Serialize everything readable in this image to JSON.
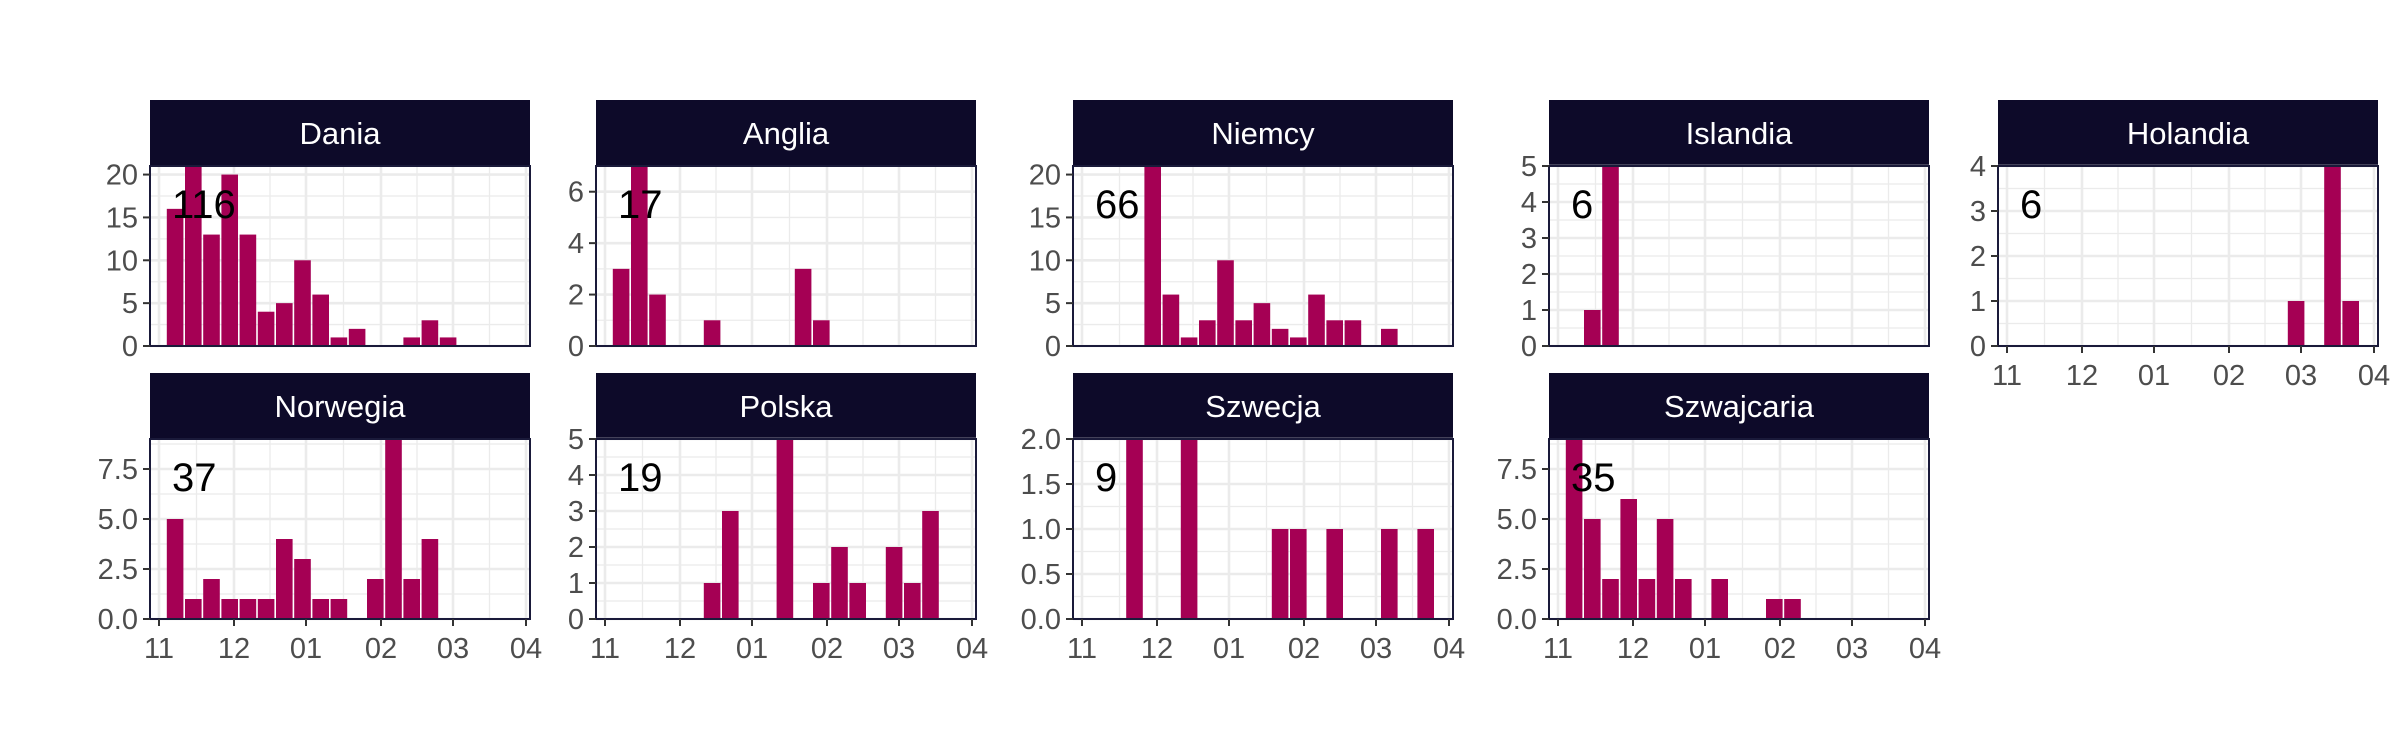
{
  "colors": {
    "bar": "#a50054",
    "strip_bg": "#0d0a29",
    "strip_text": "#ffffff",
    "grid": "#ebebeb",
    "panel_border": "#1a1a3a",
    "tick_text": "#4d4d4d",
    "total_text": "#000000"
  },
  "chart_data": {
    "type": "bar",
    "layout": "faceted small multiples (5 columns x 2 rows), free y scales, shared x axis",
    "grid": true,
    "x_tick_labels": [
      "11",
      "12",
      "01",
      "02",
      "03",
      "04"
    ],
    "panels": [
      {
        "name": "Dania",
        "total": "116",
        "y_ticks": [
          0,
          5,
          10,
          15,
          20
        ],
        "y_tick_labels": [
          "0",
          "5",
          "10",
          "15",
          "20"
        ],
        "ylim": [
          0,
          21
        ],
        "bars": [
          [
            0,
            16
          ],
          [
            1,
            21
          ],
          [
            2,
            13
          ],
          [
            3,
            20
          ],
          [
            4,
            13
          ],
          [
            5,
            4
          ],
          [
            6,
            5
          ],
          [
            7,
            10
          ],
          [
            8,
            6
          ],
          [
            9,
            1
          ],
          [
            10,
            2
          ],
          [
            13,
            1
          ],
          [
            14,
            3
          ],
          [
            15,
            1
          ]
        ]
      },
      {
        "name": "Anglia",
        "total": "17",
        "y_ticks": [
          0,
          2,
          4,
          6
        ],
        "y_tick_labels": [
          "0",
          "2",
          "4",
          "6"
        ],
        "ylim": [
          0,
          7
        ],
        "bars": [
          [
            0,
            3
          ],
          [
            1,
            7
          ],
          [
            2,
            2
          ],
          [
            5,
            1
          ],
          [
            10,
            3
          ],
          [
            11,
            1
          ]
        ]
      },
      {
        "name": "Niemcy",
        "total": "66",
        "y_ticks": [
          0,
          5,
          10,
          15,
          20
        ],
        "y_tick_labels": [
          "0",
          "5",
          "10",
          "15",
          "20"
        ],
        "ylim": [
          0,
          21
        ],
        "bars": [
          [
            3,
            21
          ],
          [
            4,
            6
          ],
          [
            5,
            1
          ],
          [
            6,
            3
          ],
          [
            7,
            10
          ],
          [
            8,
            3
          ],
          [
            9,
            5
          ],
          [
            10,
            2
          ],
          [
            11,
            1
          ],
          [
            12,
            6
          ],
          [
            13,
            3
          ],
          [
            14,
            3
          ],
          [
            16,
            2
          ]
        ]
      },
      {
        "name": "Islandia",
        "total": "6",
        "y_ticks": [
          0,
          1,
          2,
          3,
          4,
          5
        ],
        "y_tick_labels": [
          "0",
          "1",
          "2",
          "3",
          "4",
          "5"
        ],
        "ylim": [
          0,
          5
        ],
        "bars": [
          [
            1,
            1
          ],
          [
            2,
            5
          ]
        ]
      },
      {
        "name": "Holandia",
        "total": "6",
        "y_ticks": [
          0,
          1,
          2,
          3,
          4
        ],
        "y_tick_labels": [
          "0",
          "1",
          "2",
          "3",
          "4"
        ],
        "ylim": [
          0,
          4
        ],
        "bars": [
          [
            15,
            1
          ],
          [
            17,
            4
          ],
          [
            18,
            1
          ]
        ]
      },
      {
        "name": "Norwegia",
        "total": "37",
        "y_ticks": [
          0,
          2.5,
          5,
          7.5
        ],
        "y_tick_labels": [
          "0.0",
          "2.5",
          "5.0",
          "7.5"
        ],
        "ylim": [
          0,
          9
        ],
        "bars": [
          [
            0,
            5
          ],
          [
            1,
            1
          ],
          [
            2,
            2
          ],
          [
            3,
            1
          ],
          [
            4,
            1
          ],
          [
            5,
            1
          ],
          [
            6,
            4
          ],
          [
            7,
            3
          ],
          [
            8,
            1
          ],
          [
            9,
            1
          ],
          [
            11,
            2
          ],
          [
            12,
            9
          ],
          [
            13,
            2
          ],
          [
            14,
            4
          ]
        ]
      },
      {
        "name": "Polska",
        "total": "19",
        "y_ticks": [
          0,
          1,
          2,
          3,
          4,
          5
        ],
        "y_tick_labels": [
          "0",
          "1",
          "2",
          "3",
          "4",
          "5"
        ],
        "ylim": [
          0,
          5
        ],
        "bars": [
          [
            5,
            1
          ],
          [
            6,
            3
          ],
          [
            9,
            5
          ],
          [
            11,
            1
          ],
          [
            12,
            2
          ],
          [
            13,
            1
          ],
          [
            15,
            2
          ],
          [
            16,
            1
          ],
          [
            17,
            3
          ]
        ]
      },
      {
        "name": "Szwecja",
        "total": "9",
        "y_ticks": [
          0,
          0.5,
          1,
          1.5,
          2
        ],
        "y_tick_labels": [
          "0.0",
          "0.5",
          "1.0",
          "1.5",
          "2.0"
        ],
        "ylim": [
          0,
          2
        ],
        "bars": [
          [
            2,
            2
          ],
          [
            5,
            2
          ],
          [
            10,
            1
          ],
          [
            11,
            1
          ],
          [
            13,
            1
          ],
          [
            16,
            1
          ],
          [
            18,
            1
          ]
        ]
      },
      {
        "name": "Szwajcaria",
        "total": "35",
        "y_ticks": [
          0,
          2.5,
          5,
          7.5
        ],
        "y_tick_labels": [
          "0.0",
          "2.5",
          "5.0",
          "7.5"
        ],
        "ylim": [
          0,
          9
        ],
        "bars": [
          [
            0,
            9
          ],
          [
            1,
            5
          ],
          [
            2,
            2
          ],
          [
            3,
            6
          ],
          [
            4,
            2
          ],
          [
            5,
            5
          ],
          [
            6,
            2
          ],
          [
            8,
            2
          ],
          [
            11,
            1
          ],
          [
            12,
            1
          ]
        ]
      }
    ]
  }
}
